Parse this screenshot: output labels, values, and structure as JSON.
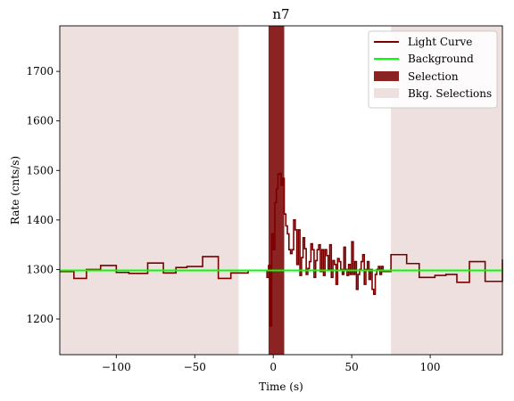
{
  "chart_data": {
    "type": "line",
    "title": "n7",
    "xlabel": "Time (s)",
    "ylabel": "Rate (cnts/s)",
    "xlim": [
      -136,
      146
    ],
    "ylim": [
      1128,
      1792
    ],
    "xticks": [
      -100,
      -50,
      0,
      50,
      100
    ],
    "yticks": [
      1200,
      1300,
      1400,
      1500,
      1600,
      1700
    ],
    "grid": false,
    "legend_position": "top-right",
    "legend": [
      {
        "label": "Light Curve",
        "kind": "line",
        "color": "#7a0000"
      },
      {
        "label": "Background",
        "kind": "line",
        "color": "#00ff00"
      },
      {
        "label": "Selection",
        "kind": "patch",
        "color": "#8b2323"
      },
      {
        "label": "Bkg. Selections",
        "kind": "patch",
        "color": "#efe0e0"
      }
    ],
    "colors": {
      "light_curve": "#7a0000",
      "background": "#00ff00",
      "selection": "#8b2323",
      "bkg_selection": "#efe0e0"
    },
    "background_level": 1298,
    "selection_range": [
      -3,
      7
    ],
    "bkg_selection_ranges": [
      [
        -136,
        -22
      ],
      [
        75,
        146
      ]
    ],
    "light_curve": {
      "x": [
        -136,
        -127,
        -119,
        -110,
        -100,
        -92,
        -80,
        -70,
        -62,
        -55,
        -45,
        -35,
        -27,
        -16,
        -12,
        -10,
        -4,
        -3,
        -2,
        -1,
        0,
        1,
        2,
        3,
        4,
        5,
        6,
        7,
        8,
        9,
        10,
        11,
        12,
        13,
        14,
        15,
        16,
        17,
        18,
        19,
        20,
        21,
        22,
        23,
        24,
        25,
        26,
        27,
        28,
        29,
        30,
        31,
        32,
        33,
        34,
        35,
        36,
        37,
        38,
        39,
        40,
        41,
        42,
        43,
        44,
        45,
        46,
        47,
        48,
        49,
        50,
        51,
        52,
        53,
        54,
        55,
        56,
        57,
        58,
        59,
        60,
        61,
        62,
        63,
        64,
        65,
        66,
        67,
        68,
        69,
        70,
        75,
        85,
        93,
        103,
        110,
        117,
        125,
        135,
        146
      ],
      "y": [
        1296,
        1282,
        1300,
        1308,
        1294,
        1292,
        1313,
        1293,
        1304,
        1306,
        1326,
        1282,
        1293,
        1298,
        1298,
        1298,
        1284,
        1308,
        1186,
        1372,
        1340,
        1435,
        1463,
        1492,
        1494,
        1470,
        1484,
        1412,
        1388,
        1372,
        1340,
        1332,
        1340,
        1400,
        1380,
        1310,
        1380,
        1288,
        1324,
        1364,
        1342,
        1290,
        1302,
        1316,
        1352,
        1340,
        1284,
        1318,
        1340,
        1350,
        1296,
        1340,
        1288,
        1340,
        1328,
        1300,
        1350,
        1284,
        1318,
        1310,
        1270,
        1322,
        1316,
        1300,
        1290,
        1345,
        1300,
        1288,
        1310,
        1290,
        1356,
        1290,
        1316,
        1260,
        1290,
        1300,
        1316,
        1330,
        1270,
        1300,
        1316,
        1280,
        1300,
        1260,
        1250,
        1290,
        1300,
        1306,
        1290,
        1306,
        1296,
        1330,
        1312,
        1284,
        1288,
        1290,
        1274,
        1316,
        1276,
        1320
      ]
    }
  }
}
